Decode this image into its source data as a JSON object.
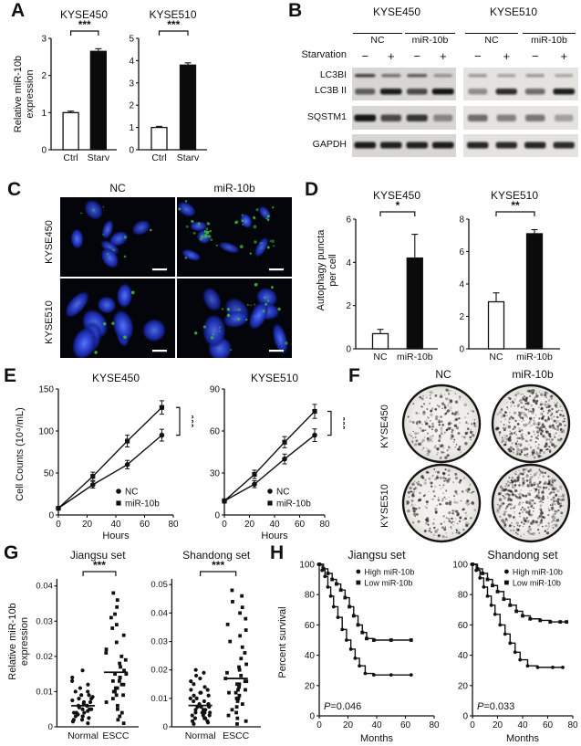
{
  "figure": {
    "background": "#ffffff",
    "accent": "#111111"
  },
  "panels": {
    "A": {
      "label": "A",
      "ylabel_lines": [
        "Relative miR-10b",
        "expression"
      ]
    },
    "B": {
      "label": "B",
      "cell_lines": [
        "KYSE450",
        "KYSE510"
      ],
      "group_labels": [
        "NC",
        "miR-10b",
        "NC",
        "miR-10b"
      ],
      "starvation_label": "Starvation",
      "lane_signs": [
        "−",
        "+",
        "−",
        "+",
        "−",
        "+",
        "−",
        "+"
      ],
      "row_labels": [
        "LC3BI",
        "LC3B II",
        "SQSTM1",
        "GAPDH"
      ],
      "blots": [
        {
          "cell_line": "KYSE450",
          "bg": "#d8d6d3",
          "LC3BI": [
            0.75,
            0.5,
            0.62,
            0.35
          ],
          "LC3BII": [
            0.6,
            0.92,
            0.7,
            0.97
          ],
          "SQSTM1": [
            0.95,
            0.7,
            0.8,
            0.4
          ],
          "GAPDH": [
            0.92,
            0.9,
            0.9,
            0.92
          ]
        },
        {
          "cell_line": "KYSE510",
          "bg": "#e5e3e0",
          "LC3BI": [
            0.35,
            0.3,
            0.35,
            0.28
          ],
          "LC3BII": [
            0.4,
            0.85,
            0.55,
            0.92
          ],
          "SQSTM1": [
            0.55,
            0.45,
            0.5,
            0.3
          ],
          "GAPDH": [
            0.88,
            0.86,
            0.88,
            0.86
          ]
        }
      ]
    },
    "C": {
      "label": "C",
      "col_headers": [
        "NC",
        "miR-10b"
      ],
      "row_headers": [
        "KYSE450",
        "KYSE510"
      ],
      "images": [
        {
          "row": "KYSE450",
          "col": "NC",
          "nuclei": 7,
          "puncta": 9,
          "nucleus_scale": 0.85,
          "seed": 11
        },
        {
          "row": "KYSE450",
          "col": "miR-10b",
          "nuclei": 8,
          "puncta": 45,
          "nucleus_scale": 0.85,
          "seed": 22
        },
        {
          "row": "KYSE510",
          "col": "NC",
          "nuclei": 9,
          "puncta": 5,
          "nucleus_scale": 1.2,
          "seed": 33
        },
        {
          "row": "KYSE510",
          "col": "miR-10b",
          "nuclei": 9,
          "puncta": 26,
          "nucleus_scale": 1.2,
          "seed": 44
        }
      ]
    },
    "D": {
      "label": "D",
      "ylabel_lines": [
        "Autophagy puncta",
        "per cell"
      ]
    },
    "E": {
      "label": "E",
      "ylabel": "Cell Counts (10⁴/mL)"
    },
    "F": {
      "label": "F",
      "col_headers": [
        "NC",
        "miR-10b"
      ],
      "row_headers": [
        "KYSE450",
        "KYSE510"
      ],
      "dishes": [
        {
          "row": "KYSE450",
          "col": "NC",
          "colonies": 240,
          "seed": 5
        },
        {
          "row": "KYSE450",
          "col": "miR-10b",
          "colonies": 430,
          "seed": 6
        },
        {
          "row": "KYSE510",
          "col": "NC",
          "colonies": 220,
          "seed": 7
        },
        {
          "row": "KYSE510",
          "col": "miR-10b",
          "colonies": 400,
          "seed": 8
        }
      ]
    },
    "G": {
      "label": "G",
      "ylabel_lines": [
        "Relative miR-10b",
        "expression"
      ]
    },
    "H": {
      "label": "H",
      "ylabel": "Percent survival"
    }
  },
  "chart_data": [
    {
      "panel": "A",
      "type": "bar",
      "title": "KYSE450",
      "ylabel": "Relative miR-10b expression",
      "categories": [
        "Ctrl",
        "Starv"
      ],
      "values": [
        1.0,
        2.65
      ],
      "errors": [
        0.04,
        0.07
      ],
      "bar_fills": [
        "#ffffff",
        "#0b0b0b"
      ],
      "ylim": [
        0,
        3
      ],
      "yticks": [
        0,
        1,
        2,
        3
      ],
      "sig": "***"
    },
    {
      "panel": "A",
      "type": "bar",
      "title": "KYSE510",
      "ylabel": "Relative miR-10b expression",
      "categories": [
        "Ctrl",
        "Starv"
      ],
      "values": [
        1.0,
        3.8
      ],
      "errors": [
        0.05,
        0.1
      ],
      "bar_fills": [
        "#ffffff",
        "#0b0b0b"
      ],
      "ylim": [
        0,
        5
      ],
      "yticks": [
        0,
        1,
        2,
        3,
        4,
        5
      ],
      "sig": "***"
    },
    {
      "panel": "D",
      "type": "bar",
      "title": "KYSE450",
      "ylabel": "Autophagy puncta per cell",
      "categories": [
        "NC",
        "miR-10b"
      ],
      "values": [
        0.7,
        4.2
      ],
      "errors": [
        0.2,
        1.1
      ],
      "bar_fills": [
        "#ffffff",
        "#0b0b0b"
      ],
      "ylim": [
        0,
        6
      ],
      "yticks": [
        0,
        2,
        4,
        6
      ],
      "sig": "*"
    },
    {
      "panel": "D",
      "type": "bar",
      "title": "KYSE510",
      "ylabel": "Autophagy puncta per cell",
      "categories": [
        "NC",
        "miR-10b"
      ],
      "values": [
        2.9,
        7.1
      ],
      "errors": [
        0.55,
        0.25
      ],
      "bar_fills": [
        "#ffffff",
        "#0b0b0b"
      ],
      "ylim": [
        0,
        8
      ],
      "yticks": [
        0,
        2,
        4,
        6,
        8
      ],
      "sig": "**"
    },
    {
      "panel": "E",
      "type": "line",
      "title": "KYSE450",
      "ylabel": "Cell Counts (10⁴/mL)",
      "xlabel": "Hours",
      "x": [
        0,
        24,
        48,
        72
      ],
      "xlim": [
        0,
        80
      ],
      "xticks": [
        0,
        20,
        40,
        60,
        80
      ],
      "ylim": [
        0,
        150
      ],
      "yticks": [
        0,
        50,
        100,
        150
      ],
      "sig": "***",
      "series": [
        {
          "name": "NC",
          "marker": "circle",
          "values": [
            8,
            36,
            60,
            95
          ],
          "errors": [
            2,
            4,
            5,
            7
          ]
        },
        {
          "name": "miR-10b",
          "marker": "square",
          "values": [
            8,
            46,
            88,
            128
          ],
          "errors": [
            2,
            5,
            7,
            8
          ]
        }
      ]
    },
    {
      "panel": "E",
      "type": "line",
      "title": "KYSE510",
      "ylabel": "Cell Counts (10⁴/mL)",
      "xlabel": "Hours",
      "x": [
        0,
        24,
        48,
        72
      ],
      "xlim": [
        0,
        80
      ],
      "xticks": [
        0,
        20,
        40,
        60,
        80
      ],
      "ylim": [
        0,
        90
      ],
      "yticks": [
        0,
        30,
        60,
        90
      ],
      "sig": "***",
      "series": [
        {
          "name": "NC",
          "marker": "circle",
          "values": [
            10,
            22,
            40,
            57
          ],
          "errors": [
            1.5,
            2.5,
            3.5,
            4.5
          ]
        },
        {
          "name": "miR-10b",
          "marker": "square",
          "values": [
            10,
            29,
            52,
            74
          ],
          "errors": [
            1.5,
            3,
            4,
            5
          ]
        }
      ]
    },
    {
      "panel": "G",
      "type": "scatter",
      "title": "Jiangsu set",
      "ylabel": "Relative miR-10b expression",
      "tick_format": "2dp",
      "seed": 3,
      "ylim": [
        0,
        0.042
      ],
      "yticks": [
        0,
        0.01,
        0.02,
        0.03,
        0.04
      ],
      "sig": "***",
      "groups": [
        {
          "name": "Normal",
          "marker": "circle",
          "mean": 0.006,
          "values": [
            0.001,
            0.0015,
            0.002,
            0.002,
            0.0025,
            0.003,
            0.003,
            0.003,
            0.0035,
            0.004,
            0.004,
            0.004,
            0.0045,
            0.005,
            0.005,
            0.005,
            0.0055,
            0.006,
            0.006,
            0.006,
            0.0065,
            0.007,
            0.007,
            0.0075,
            0.008,
            0.008,
            0.0085,
            0.009,
            0.009,
            0.01,
            0.01,
            0.011,
            0.012,
            0.013,
            0.014,
            0.016
          ]
        },
        {
          "name": "ESCC",
          "marker": "square",
          "mean": 0.0155,
          "values": [
            0.001,
            0.002,
            0.003,
            0.004,
            0.005,
            0.006,
            0.007,
            0.008,
            0.009,
            0.009,
            0.01,
            0.01,
            0.011,
            0.011,
            0.012,
            0.012,
            0.013,
            0.013,
            0.014,
            0.014,
            0.015,
            0.015,
            0.016,
            0.017,
            0.018,
            0.019,
            0.02,
            0.021,
            0.022,
            0.024,
            0.026,
            0.028,
            0.029,
            0.031,
            0.032,
            0.034,
            0.036,
            0.038
          ]
        }
      ]
    },
    {
      "panel": "G",
      "type": "scatter",
      "title": "Shandong set",
      "ylabel": "Relative miR-10b expression",
      "tick_format": "2dp",
      "seed": 9,
      "ylim": [
        0,
        0.052
      ],
      "yticks": [
        0,
        0.01,
        0.02,
        0.03,
        0.04,
        0.05
      ],
      "sig": "***",
      "groups": [
        {
          "name": "Normal",
          "marker": "circle",
          "mean": 0.0075,
          "values": [
            0.001,
            0.0015,
            0.002,
            0.002,
            0.003,
            0.003,
            0.003,
            0.004,
            0.004,
            0.004,
            0.005,
            0.005,
            0.005,
            0.005,
            0.006,
            0.006,
            0.006,
            0.007,
            0.007,
            0.007,
            0.008,
            0.008,
            0.008,
            0.009,
            0.009,
            0.01,
            0.01,
            0.011,
            0.011,
            0.012,
            0.012,
            0.013,
            0.013,
            0.014,
            0.015,
            0.016,
            0.017,
            0.018,
            0.019,
            0.02
          ]
        },
        {
          "name": "ESCC",
          "marker": "square",
          "mean": 0.017,
          "values": [
            0.001,
            0.002,
            0.003,
            0.004,
            0.005,
            0.006,
            0.007,
            0.008,
            0.009,
            0.01,
            0.01,
            0.011,
            0.012,
            0.012,
            0.013,
            0.013,
            0.014,
            0.015,
            0.015,
            0.016,
            0.016,
            0.017,
            0.018,
            0.019,
            0.02,
            0.021,
            0.022,
            0.024,
            0.026,
            0.028,
            0.03,
            0.032,
            0.034,
            0.036,
            0.038,
            0.04,
            0.042,
            0.044,
            0.046,
            0.048
          ]
        }
      ]
    },
    {
      "panel": "H",
      "type": "km",
      "title": "Jiangsu set",
      "ylabel": "Percent survival",
      "xlabel": "Months",
      "xlim": [
        0,
        80
      ],
      "xticks": [
        0,
        20,
        40,
        60,
        80
      ],
      "ylim": [
        0,
        100
      ],
      "yticks": [
        0,
        20,
        40,
        60,
        80,
        100
      ],
      "p_label": "P=0.046",
      "series": [
        {
          "name": "High miR-10b",
          "marker": "circle",
          "steps": [
            [
              0,
              100
            ],
            [
              2,
              96
            ],
            [
              4,
              92
            ],
            [
              6,
              85
            ],
            [
              8,
              79
            ],
            [
              10,
              72
            ],
            [
              13,
              65
            ],
            [
              16,
              57
            ],
            [
              19,
              50
            ],
            [
              22,
              44
            ],
            [
              25,
              38
            ],
            [
              28,
              33
            ],
            [
              32,
              28
            ],
            [
              38,
              27
            ],
            [
              50,
              27
            ],
            [
              64,
              27
            ]
          ]
        },
        {
          "name": "Low miR-10b",
          "marker": "square",
          "steps": [
            [
              0,
              100
            ],
            [
              3,
              97
            ],
            [
              6,
              94
            ],
            [
              9,
              90
            ],
            [
              12,
              87
            ],
            [
              15,
              83
            ],
            [
              18,
              78
            ],
            [
              21,
              72
            ],
            [
              24,
              66
            ],
            [
              27,
              60
            ],
            [
              30,
              55
            ],
            [
              33,
              51
            ],
            [
              38,
              50
            ],
            [
              50,
              50
            ],
            [
              64,
              50
            ]
          ]
        }
      ]
    },
    {
      "panel": "H",
      "type": "km",
      "title": "Shandong set",
      "ylabel": "Percent survival",
      "xlabel": "Months",
      "xlim": [
        0,
        80
      ],
      "xticks": [
        0,
        20,
        40,
        60,
        80
      ],
      "ylim": [
        0,
        100
      ],
      "yticks": [
        0,
        20,
        40,
        60,
        80,
        100
      ],
      "p_label": "P=0.033",
      "series": [
        {
          "name": "High miR-10b",
          "marker": "circle",
          "steps": [
            [
              0,
              100
            ],
            [
              3,
              96
            ],
            [
              6,
              91
            ],
            [
              9,
              85
            ],
            [
              12,
              79
            ],
            [
              15,
              73
            ],
            [
              18,
              67
            ],
            [
              22,
              60
            ],
            [
              26,
              54
            ],
            [
              30,
              48
            ],
            [
              34,
              42
            ],
            [
              38,
              37
            ],
            [
              44,
              33
            ],
            [
              52,
              32
            ],
            [
              64,
              32
            ],
            [
              72,
              32
            ]
          ]
        },
        {
          "name": "Low miR-10b",
          "marker": "square",
          "steps": [
            [
              0,
              100
            ],
            [
              4,
              97
            ],
            [
              8,
              94
            ],
            [
              12,
              90
            ],
            [
              16,
              86
            ],
            [
              20,
              82
            ],
            [
              25,
              77
            ],
            [
              30,
              73
            ],
            [
              35,
              69
            ],
            [
              40,
              66
            ],
            [
              46,
              64
            ],
            [
              54,
              63
            ],
            [
              62,
              62
            ],
            [
              70,
              62
            ],
            [
              75,
              62
            ]
          ]
        }
      ]
    }
  ]
}
